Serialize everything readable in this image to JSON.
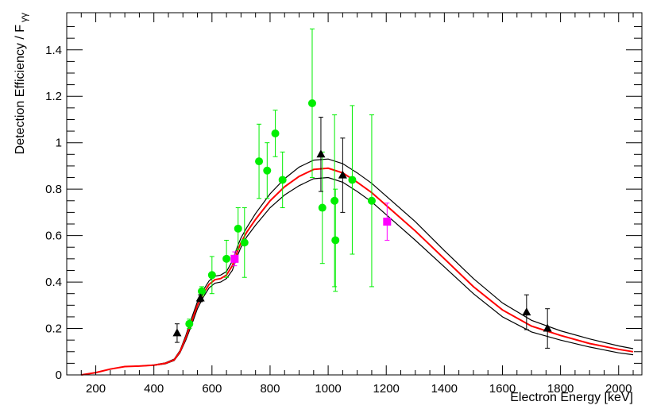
{
  "chart_data": {
    "type": "scatter",
    "xlabel": "Electron Energy [keV]",
    "ylabel": "Detection Efficiency / F",
    "ylabel_subscript": "γγ",
    "xlim": [
      100,
      2080
    ],
    "ylim": [
      0,
      1.56
    ],
    "x_ticks": [
      200,
      400,
      600,
      800,
      1000,
      1200,
      1400,
      1600,
      1800,
      2000
    ],
    "y_ticks": [
      0,
      0.2,
      0.4,
      0.6,
      0.8,
      1,
      1.2,
      1.4
    ],
    "x_tick_labels": [
      "200",
      "400",
      "600",
      "800",
      "1000",
      "1200",
      "1400",
      "1600",
      "1800",
      "2000"
    ],
    "y_tick_labels": [
      "0",
      "0.2",
      "0.4",
      "0.6",
      "0.8",
      "1",
      "1.2",
      "1.4"
    ],
    "grid": false,
    "colors": {
      "central": "#ff0000",
      "band": "#000000",
      "green": "#00ee00",
      "black": "#000000",
      "magenta": "#ff00ff"
    },
    "curves": {
      "x": [
        150,
        200,
        250,
        300,
        350,
        400,
        440,
        470,
        490,
        510,
        530,
        550,
        570,
        590,
        610,
        630,
        650,
        670,
        690,
        700,
        720,
        750,
        800,
        850,
        900,
        950,
        1000,
        1050,
        1100,
        1150,
        1200,
        1300,
        1400,
        1500,
        1600,
        1700,
        1800,
        1900,
        2000,
        2050
      ],
      "central": [
        0.0,
        0.01,
        0.025,
        0.036,
        0.038,
        0.042,
        0.05,
        0.065,
        0.1,
        0.16,
        0.23,
        0.3,
        0.35,
        0.39,
        0.41,
        0.415,
        0.43,
        0.47,
        0.54,
        0.57,
        0.615,
        0.67,
        0.75,
        0.81,
        0.855,
        0.885,
        0.89,
        0.87,
        0.83,
        0.785,
        0.73,
        0.62,
        0.5,
        0.38,
        0.28,
        0.21,
        0.17,
        0.135,
        0.11,
        0.1
      ],
      "upper": [
        0.0,
        0.01,
        0.025,
        0.036,
        0.038,
        0.043,
        0.052,
        0.068,
        0.105,
        0.17,
        0.245,
        0.315,
        0.365,
        0.405,
        0.425,
        0.43,
        0.445,
        0.49,
        0.56,
        0.59,
        0.635,
        0.695,
        0.78,
        0.845,
        0.895,
        0.925,
        0.93,
        0.91,
        0.87,
        0.825,
        0.77,
        0.66,
        0.535,
        0.415,
        0.31,
        0.235,
        0.19,
        0.155,
        0.125,
        0.113
      ],
      "lower": [
        0.0,
        0.01,
        0.025,
        0.036,
        0.038,
        0.041,
        0.048,
        0.062,
        0.095,
        0.15,
        0.215,
        0.285,
        0.335,
        0.375,
        0.395,
        0.4,
        0.415,
        0.45,
        0.52,
        0.55,
        0.595,
        0.645,
        0.72,
        0.775,
        0.815,
        0.845,
        0.85,
        0.83,
        0.79,
        0.745,
        0.69,
        0.58,
        0.465,
        0.35,
        0.25,
        0.185,
        0.15,
        0.12,
        0.095,
        0.087
      ]
    },
    "series": [
      {
        "marker": "circle",
        "points": [
          {
            "x": 522,
            "y": 0.22,
            "err": 0.02
          },
          {
            "x": 565,
            "y": 0.36,
            "err": 0.02
          },
          {
            "x": 600,
            "y": 0.43,
            "err": 0.08
          },
          {
            "x": 650,
            "y": 0.5,
            "err": 0.08
          },
          {
            "x": 690,
            "y": 0.63,
            "err": 0.09
          },
          {
            "x": 712,
            "y": 0.57,
            "err": 0.15
          },
          {
            "x": 762,
            "y": 0.92,
            "err": 0.16
          },
          {
            "x": 790,
            "y": 0.88,
            "err": 0.12
          },
          {
            "x": 818,
            "y": 1.04,
            "err": 0.1
          },
          {
            "x": 843,
            "y": 0.84,
            "err": 0.12
          },
          {
            "x": 945,
            "y": 1.17,
            "err": 0.32
          },
          {
            "x": 980,
            "y": 0.72,
            "err": 0.24
          },
          {
            "x": 1022,
            "y": 0.75,
            "err": 0.37
          },
          {
            "x": 1025,
            "y": 0.58,
            "err": 0.22
          },
          {
            "x": 1083,
            "y": 0.84,
            "err": 0.32
          },
          {
            "x": 1150,
            "y": 0.75,
            "err": 0.37
          }
        ]
      },
      {
        "marker": "triangle",
        "points": [
          {
            "x": 480,
            "y": 0.18,
            "err": 0.04
          },
          {
            "x": 560,
            "y": 0.33,
            "err": 0.015
          },
          {
            "x": 975,
            "y": 0.95,
            "err": 0.16
          },
          {
            "x": 1050,
            "y": 0.86,
            "err": 0.16
          },
          {
            "x": 1683,
            "y": 0.27,
            "err": 0.075
          },
          {
            "x": 1755,
            "y": 0.2,
            "err": 0.085
          }
        ]
      },
      {
        "marker": "square",
        "points": [
          {
            "x": 678,
            "y": 0.5,
            "err": 0.03
          },
          {
            "x": 1203,
            "y": 0.66,
            "err": 0.08
          }
        ]
      }
    ]
  }
}
